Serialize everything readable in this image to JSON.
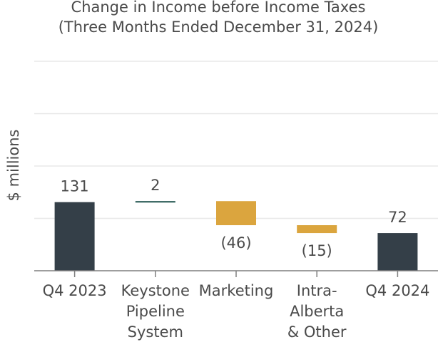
{
  "chart_data": {
    "type": "waterfall",
    "title": "Change in Income before Income Taxes",
    "subtitle": "(Three Months Ended December 31, 2024)",
    "ylabel": "$ millions",
    "xlabel": "",
    "ylim": [
      0,
      400
    ],
    "grid": true,
    "categories": [
      [
        "Q4 2023"
      ],
      [
        "Keystone",
        "Pipeline",
        "System"
      ],
      [
        "Marketing"
      ],
      [
        "Intra-",
        "Alberta",
        "& Other"
      ],
      [
        "Q4 2024"
      ]
    ],
    "steps": [
      {
        "kind": "total",
        "value": 131,
        "label": "131",
        "color": "#343f48"
      },
      {
        "kind": "delta",
        "value": 2,
        "label": "2",
        "color": "#1b4f4a"
      },
      {
        "kind": "delta",
        "value": -46,
        "label": "(46)",
        "color": "#dba53e"
      },
      {
        "kind": "delta",
        "value": -15,
        "label": "(15)",
        "color": "#dba53e"
      },
      {
        "kind": "total",
        "value": 72,
        "label": "72",
        "color": "#343f48"
      }
    ]
  }
}
